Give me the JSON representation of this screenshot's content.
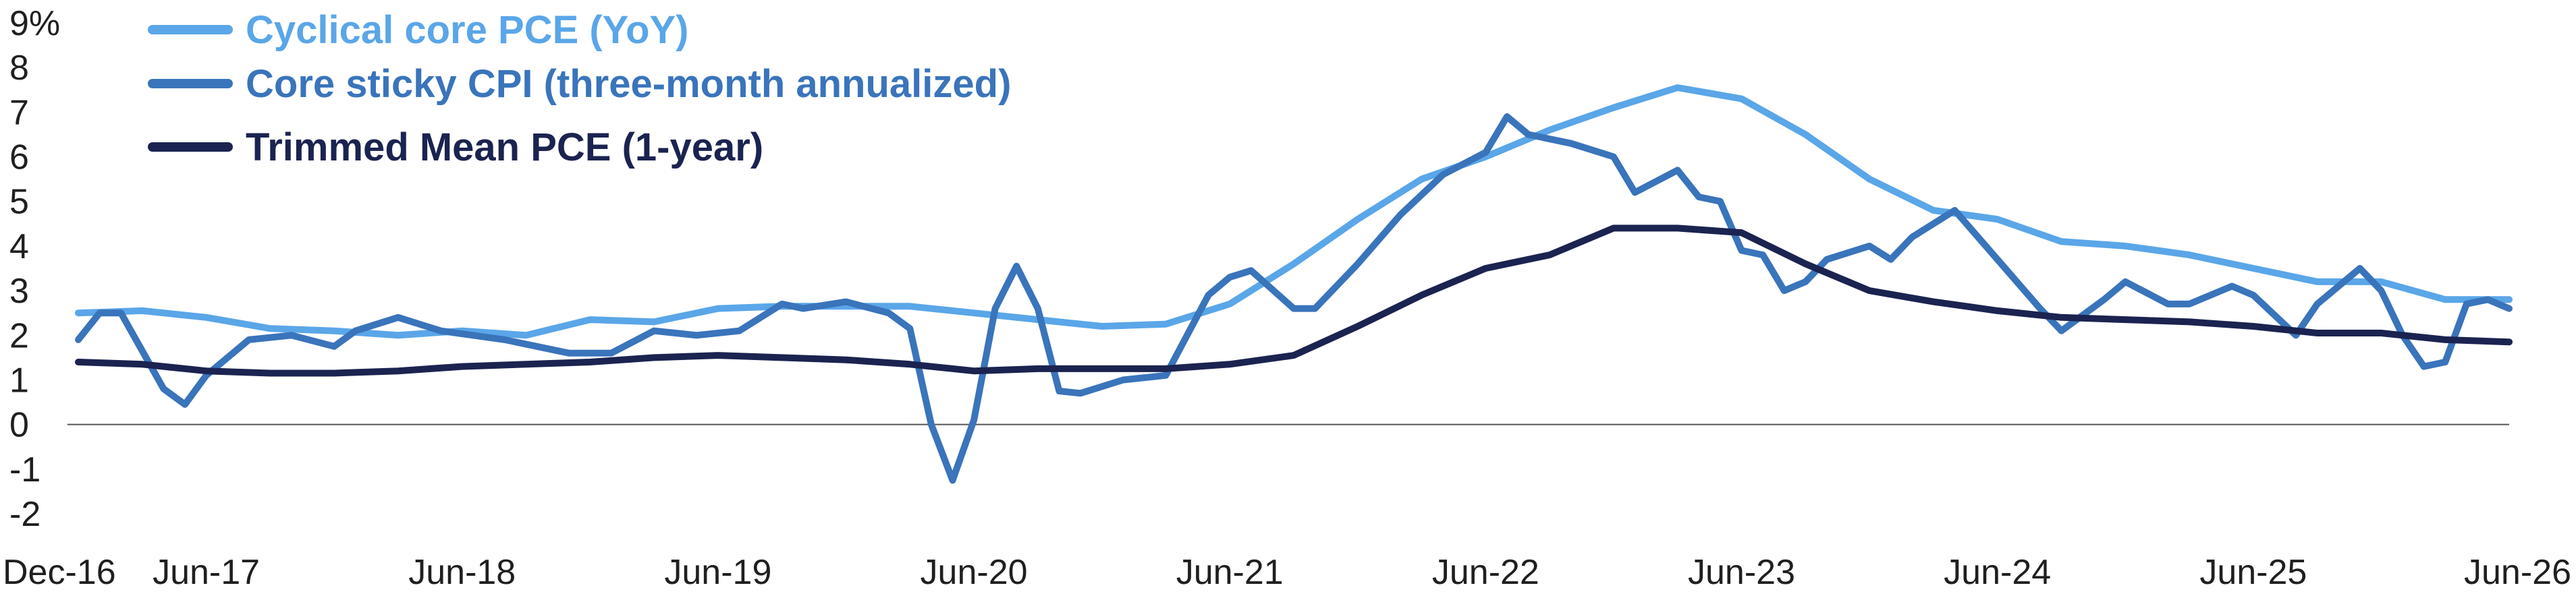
{
  "chart_data": {
    "type": "line",
    "title": "",
    "xlabel": "",
    "ylabel": "",
    "y_unit": "%",
    "ylim": [
      -2,
      9
    ],
    "yticks": [
      -2,
      -1,
      0,
      1,
      2,
      3,
      4,
      5,
      6,
      7,
      8,
      9
    ],
    "ytick_labels": [
      "-2",
      "-1",
      "0",
      "1",
      "2",
      "3",
      "4",
      "5",
      "6",
      "7",
      "8",
      "9%"
    ],
    "x_start": "2016-12",
    "x_end": "2026-06",
    "xtick_labels": [
      "Dec-16",
      "Jun-17",
      "Jun-18",
      "Jun-19",
      "Jun-20",
      "Jun-21",
      "Jun-22",
      "Jun-23",
      "Jun-24",
      "Jun-25",
      "Jun-26"
    ],
    "xtick_dates": [
      "2016-12",
      "2017-06",
      "2018-06",
      "2019-06",
      "2020-06",
      "2021-06",
      "2022-06",
      "2023-06",
      "2024-06",
      "2025-06",
      "2026-06"
    ],
    "legend_position": "top-left",
    "grid": false,
    "series": [
      {
        "name": "Cyclical core PCE (YoY)",
        "color": "#5aa6e8",
        "points": [
          [
            "2016-12",
            2.5
          ],
          [
            "2017-03",
            2.55
          ],
          [
            "2017-06",
            2.4
          ],
          [
            "2017-09",
            2.15
          ],
          [
            "2017-12",
            2.1
          ],
          [
            "2018-03",
            2.0
          ],
          [
            "2018-06",
            2.1
          ],
          [
            "2018-09",
            2.0
          ],
          [
            "2018-12",
            2.35
          ],
          [
            "2019-03",
            2.3
          ],
          [
            "2019-06",
            2.6
          ],
          [
            "2019-09",
            2.65
          ],
          [
            "2019-12",
            2.65
          ],
          [
            "2020-03",
            2.65
          ],
          [
            "2020-06",
            2.5
          ],
          [
            "2020-09",
            2.35
          ],
          [
            "2020-12",
            2.2
          ],
          [
            "2021-03",
            2.25
          ],
          [
            "2021-06",
            2.7
          ],
          [
            "2021-09",
            3.6
          ],
          [
            "2021-12",
            4.6
          ],
          [
            "2022-03",
            5.5
          ],
          [
            "2022-06",
            6.0
          ],
          [
            "2022-09",
            6.6
          ],
          [
            "2022-12",
            7.1
          ],
          [
            "2023-03",
            7.55
          ],
          [
            "2023-06",
            7.3
          ],
          [
            "2023-09",
            6.5
          ],
          [
            "2023-12",
            5.5
          ],
          [
            "2024-03",
            4.8
          ],
          [
            "2024-06",
            4.6
          ],
          [
            "2024-09",
            4.1
          ],
          [
            "2024-12",
            4.0
          ],
          [
            "2025-03",
            3.8
          ],
          [
            "2025-06",
            3.5
          ],
          [
            "2025-09",
            3.2
          ],
          [
            "2025-12",
            3.2
          ],
          [
            "2026-03",
            2.8
          ],
          [
            "2026-06",
            2.8
          ]
        ]
      },
      {
        "name": "Core sticky CPI (three-month annualized)",
        "color": "#3a74bb",
        "points": [
          [
            "2016-12",
            1.9
          ],
          [
            "2017-01",
            2.5
          ],
          [
            "2017-02",
            2.5
          ],
          [
            "2017-04",
            0.8
          ],
          [
            "2017-05",
            0.45
          ],
          [
            "2017-06",
            1.1
          ],
          [
            "2017-08",
            1.9
          ],
          [
            "2017-10",
            2.0
          ],
          [
            "2017-12",
            1.75
          ],
          [
            "2018-01",
            2.1
          ],
          [
            "2018-03",
            2.4
          ],
          [
            "2018-05",
            2.1
          ],
          [
            "2018-08",
            1.9
          ],
          [
            "2018-11",
            1.6
          ],
          [
            "2019-01",
            1.6
          ],
          [
            "2019-03",
            2.1
          ],
          [
            "2019-05",
            2.0
          ],
          [
            "2019-07",
            2.1
          ],
          [
            "2019-09",
            2.7
          ],
          [
            "2019-10",
            2.6
          ],
          [
            "2019-12",
            2.75
          ],
          [
            "2020-02",
            2.5
          ],
          [
            "2020-03",
            2.15
          ],
          [
            "2020-04",
            0.0
          ],
          [
            "2020-05",
            -1.25
          ],
          [
            "2020-06",
            0.1
          ],
          [
            "2020-07",
            2.6
          ],
          [
            "2020-08",
            3.55
          ],
          [
            "2020-09",
            2.6
          ],
          [
            "2020-10",
            0.75
          ],
          [
            "2020-11",
            0.7
          ],
          [
            "2021-01",
            1.0
          ],
          [
            "2021-03",
            1.1
          ],
          [
            "2021-05",
            2.9
          ],
          [
            "2021-06",
            3.3
          ],
          [
            "2021-07",
            3.45
          ],
          [
            "2021-09",
            2.6
          ],
          [
            "2021-10",
            2.6
          ],
          [
            "2021-12",
            3.6
          ],
          [
            "2022-02",
            4.7
          ],
          [
            "2022-04",
            5.6
          ],
          [
            "2022-06",
            6.1
          ],
          [
            "2022-07",
            6.9
          ],
          [
            "2022-08",
            6.5
          ],
          [
            "2022-10",
            6.3
          ],
          [
            "2022-12",
            6.0
          ],
          [
            "2023-01",
            5.2
          ],
          [
            "2023-03",
            5.7
          ],
          [
            "2023-04",
            5.1
          ],
          [
            "2023-05",
            5.0
          ],
          [
            "2023-06",
            3.9
          ],
          [
            "2023-07",
            3.8
          ],
          [
            "2023-08",
            3.0
          ],
          [
            "2023-09",
            3.2
          ],
          [
            "2023-10",
            3.7
          ],
          [
            "2023-12",
            4.0
          ],
          [
            "2024-01",
            3.7
          ],
          [
            "2024-02",
            4.2
          ],
          [
            "2024-04",
            4.8
          ],
          [
            "2024-06",
            3.7
          ],
          [
            "2024-08",
            2.6
          ],
          [
            "2024-09",
            2.1
          ],
          [
            "2024-11",
            2.8
          ],
          [
            "2024-12",
            3.2
          ],
          [
            "2025-02",
            2.7
          ],
          [
            "2025-03",
            2.7
          ],
          [
            "2025-05",
            3.1
          ],
          [
            "2025-06",
            2.9
          ],
          [
            "2025-08",
            2.0
          ],
          [
            "2025-09",
            2.7
          ],
          [
            "2025-11",
            3.5
          ],
          [
            "2025-12",
            3.0
          ],
          [
            "2026-01",
            2.0
          ],
          [
            "2026-02",
            1.3
          ],
          [
            "2026-03",
            1.4
          ],
          [
            "2026-04",
            2.7
          ],
          [
            "2026-05",
            2.8
          ],
          [
            "2026-06",
            2.6
          ]
        ]
      },
      {
        "name": "Trimmed Mean PCE (1-year)",
        "color": "#1b2350",
        "points": [
          [
            "2016-12",
            1.4
          ],
          [
            "2017-03",
            1.35
          ],
          [
            "2017-06",
            1.2
          ],
          [
            "2017-09",
            1.15
          ],
          [
            "2017-12",
            1.15
          ],
          [
            "2018-03",
            1.2
          ],
          [
            "2018-06",
            1.3
          ],
          [
            "2018-09",
            1.35
          ],
          [
            "2018-12",
            1.4
          ],
          [
            "2019-03",
            1.5
          ],
          [
            "2019-06",
            1.55
          ],
          [
            "2019-09",
            1.5
          ],
          [
            "2019-12",
            1.45
          ],
          [
            "2020-03",
            1.35
          ],
          [
            "2020-06",
            1.2
          ],
          [
            "2020-09",
            1.25
          ],
          [
            "2020-12",
            1.25
          ],
          [
            "2021-03",
            1.25
          ],
          [
            "2021-06",
            1.35
          ],
          [
            "2021-09",
            1.55
          ],
          [
            "2021-12",
            2.2
          ],
          [
            "2022-03",
            2.9
          ],
          [
            "2022-06",
            3.5
          ],
          [
            "2022-09",
            3.8
          ],
          [
            "2022-12",
            4.4
          ],
          [
            "2023-03",
            4.4
          ],
          [
            "2023-06",
            4.3
          ],
          [
            "2023-09",
            3.6
          ],
          [
            "2023-12",
            3.0
          ],
          [
            "2024-03",
            2.75
          ],
          [
            "2024-06",
            2.55
          ],
          [
            "2024-09",
            2.4
          ],
          [
            "2024-12",
            2.35
          ],
          [
            "2025-03",
            2.3
          ],
          [
            "2025-06",
            2.2
          ],
          [
            "2025-09",
            2.05
          ],
          [
            "2025-12",
            2.05
          ],
          [
            "2026-03",
            1.9
          ],
          [
            "2026-06",
            1.85
          ]
        ]
      }
    ]
  }
}
